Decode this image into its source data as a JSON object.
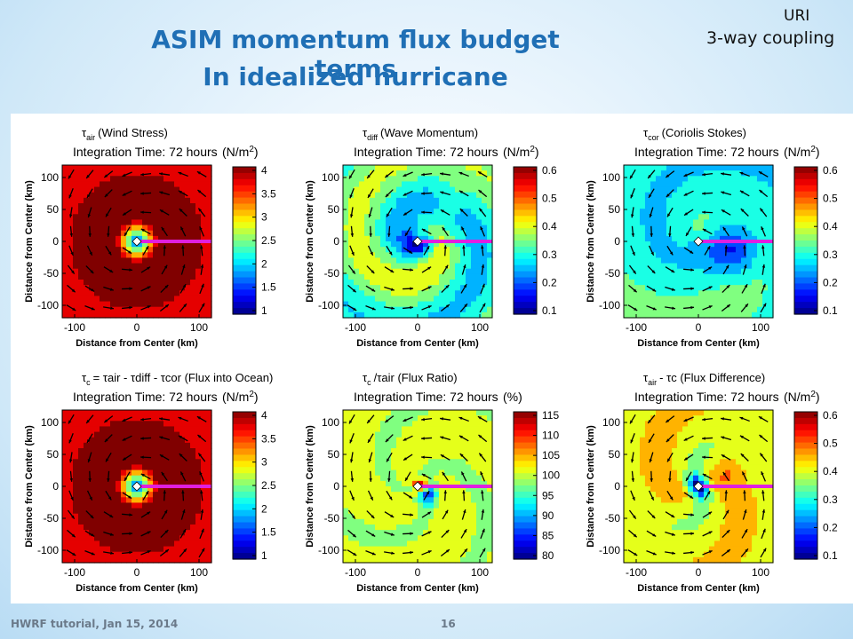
{
  "slide": {
    "title_line1": "ASIM momentum flux budget terms",
    "title_line2": "In idealized hurricane",
    "corner_top": "URI",
    "corner_sub": "3-way coupling",
    "footer_left": "HWRF tutorial, Jan 15, 2014",
    "page_number": "16"
  },
  "panels": [
    {
      "title_symbol": "τ",
      "title_sub": "air",
      "title_label": "(Wind Stress)",
      "time_label": "Integration Time: 72 hours",
      "units": "(N/m",
      "units_sup": "2",
      "units_close": ")",
      "xlabel": "Distance from Center (km)",
      "ylabel": "Distance from Center (km)",
      "xticks": [
        "-100",
        "0",
        "100"
      ],
      "yticks": [
        "100",
        "50",
        "0",
        "-50",
        "-100"
      ],
      "colorbar_ticks": [
        "4",
        "3.5",
        "3",
        "2.5",
        "2",
        "1.5",
        "1"
      ],
      "field": {
        "kind": "ring",
        "min": 1,
        "max": 4
      }
    },
    {
      "title_symbol": "τ",
      "title_sub": "diff",
      "title_label": "(Wave Momentum)",
      "time_label": "Integration Time: 72 hours",
      "units": "(N/m",
      "units_sup": "2",
      "units_close": ")",
      "xlabel": "Distance from Center (km)",
      "ylabel": "Distance from Center (km)",
      "xticks": [
        "-100",
        "0",
        "100"
      ],
      "yticks": [
        "100",
        "50",
        "0",
        "-50",
        "-100"
      ],
      "colorbar_ticks": [
        "0.6",
        "0.5",
        "0.4",
        "0.3",
        "0.2",
        "0.1"
      ],
      "field": {
        "kind": "wave",
        "min": 0.05,
        "max": 0.65
      }
    },
    {
      "title_symbol": "τ",
      "title_sub": "cor",
      "title_label": "(Coriolis Stokes)",
      "time_label": "Integration Time: 72 hours",
      "units": "(N/m",
      "units_sup": "2",
      "units_close": ")",
      "xlabel": "Distance from Center (km)",
      "ylabel": "Distance from Center (km)",
      "xticks": [
        "-100",
        "0",
        "100"
      ],
      "yticks": [
        "100",
        "50",
        "0",
        "-50",
        "-100"
      ],
      "colorbar_ticks": [
        "0.6",
        "0.5",
        "0.4",
        "0.3",
        "0.2",
        "0.1"
      ],
      "field": {
        "kind": "coriolis",
        "min": 0.05,
        "max": 0.65
      }
    },
    {
      "title_symbol": "τ",
      "title_sub": "c",
      "title_label": "= τair - τdiff - τcor (Flux into Ocean)",
      "time_label": "Integration Time: 72 hours",
      "units": "(N/m",
      "units_sup": "2",
      "units_close": ")",
      "xlabel": "Distance from Center (km)",
      "ylabel": "Distance from Center (km)",
      "xticks": [
        "-100",
        "0",
        "100"
      ],
      "yticks": [
        "100",
        "50",
        "0",
        "-50",
        "-100"
      ],
      "colorbar_ticks": [
        "4",
        "3.5",
        "3",
        "2.5",
        "2",
        "1.5",
        "1"
      ],
      "field": {
        "kind": "ring",
        "min": 1,
        "max": 4
      }
    },
    {
      "title_symbol": "τ",
      "title_sub": "c",
      "title_label": "/τair (Flux Ratio)",
      "time_label": "Integration Time: 72 hours",
      "units": "(%)",
      "units_sup": "",
      "units_close": "",
      "xlabel": "Distance from Center (km)",
      "ylabel": "Distance from Center (km)",
      "xticks": [
        "-100",
        "0",
        "100"
      ],
      "yticks": [
        "100",
        "50",
        "0",
        "-50",
        "-100"
      ],
      "colorbar_ticks": [
        "115",
        "110",
        "105",
        "100",
        "95",
        "90",
        "85",
        "80"
      ],
      "field": {
        "kind": "ratio",
        "min": 80,
        "max": 115
      }
    },
    {
      "title_symbol": "τ",
      "title_sub": "air",
      "title_label": "- τc (Flux Difference)",
      "time_label": "Integration Time: 72 hours",
      "units": "(N/m",
      "units_sup": "2",
      "units_close": ")",
      "xlabel": "Distance from Center (km)",
      "ylabel": "Distance from Center (km)",
      "xticks": [
        "-100",
        "0",
        "100"
      ],
      "yticks": [
        "100",
        "50",
        "0",
        "-50",
        "-100"
      ],
      "colorbar_ticks": [
        "0.6",
        "0.5",
        "0.4",
        "0.3",
        "0.2",
        "0.1"
      ],
      "field": {
        "kind": "diff",
        "min": 0.05,
        "max": 0.65
      }
    }
  ],
  "colors": {
    "title": "#1f6fb5",
    "track": "#e020e0"
  }
}
